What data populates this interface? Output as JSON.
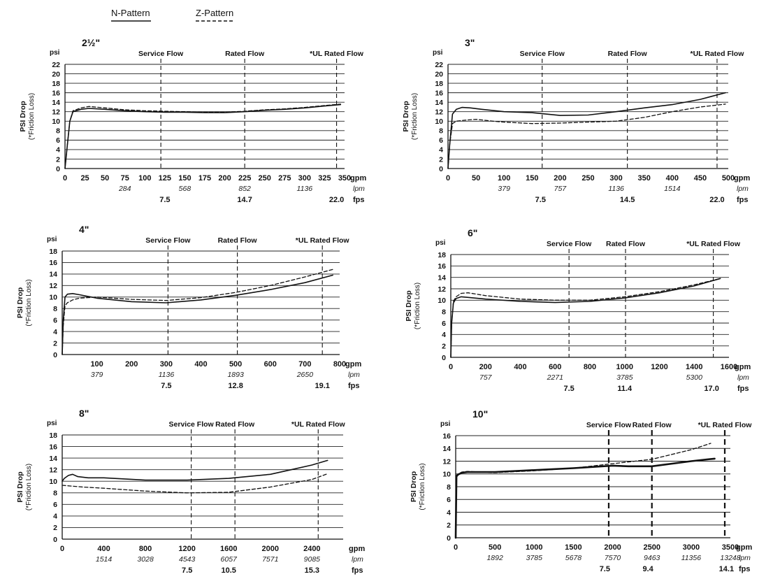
{
  "legend": {
    "n_pattern": "N-Pattern",
    "z_pattern": "Z-Pattern"
  },
  "labels": {
    "psi": "psi",
    "ylabel_main": "PSI Drop",
    "ylabel_sub": "(*Friction Loss)",
    "gpm": "gpm",
    "lpm": "lpm",
    "fps": "fps",
    "service_flow": "Service Flow",
    "rated_flow": "Rated Flow",
    "ul_rated_flow": "*UL Rated Flow"
  },
  "colors": {
    "line": "#111111",
    "grid": "#222222"
  },
  "chart_data": [
    {
      "id": "2_5in",
      "type": "line",
      "title": "2½\"",
      "xlabel": "gpm",
      "ylabel": "PSI Drop (*Friction Loss)",
      "xlim": [
        0,
        350
      ],
      "ylim": [
        0,
        22
      ],
      "x_ticks": [
        "0",
        "25",
        "50",
        "75",
        "100",
        "125",
        "150",
        "175",
        "200",
        "225",
        "250",
        "275",
        "300",
        "325",
        "350"
      ],
      "y_ticks": [
        "0",
        "2",
        "4",
        "6",
        "8",
        "10",
        "12",
        "14",
        "16",
        "18",
        "20",
        "22"
      ],
      "lpm_ticks": [
        {
          "x": 75,
          "label": "284"
        },
        {
          "x": 150,
          "label": "568"
        },
        {
          "x": 225,
          "label": "852"
        },
        {
          "x": 300,
          "label": "1136"
        }
      ],
      "fps_ticks": [
        {
          "x": 125,
          "label": "7.5"
        },
        {
          "x": 225,
          "label": "14.7"
        },
        {
          "x": 340,
          "label": "22.0"
        }
      ],
      "markers": [
        {
          "x": 120,
          "label": "Service Flow"
        },
        {
          "x": 225,
          "label": "Rated Flow"
        },
        {
          "x": 340,
          "label": "*UL Rated Flow"
        }
      ],
      "series": [
        {
          "name": "N-Pattern",
          "style": "solid",
          "x": [
            0,
            3,
            6,
            10,
            20,
            30,
            50,
            75,
            100,
            125,
            150,
            175,
            200,
            225,
            250,
            275,
            300,
            325,
            345
          ],
          "y": [
            0,
            5,
            10,
            12,
            12.5,
            12.7,
            12.5,
            12.2,
            12.0,
            11.9,
            11.9,
            11.8,
            11.8,
            12.0,
            12.3,
            12.5,
            12.8,
            13.2,
            13.5
          ]
        },
        {
          "name": "Z-Pattern",
          "style": "dashed",
          "x": [
            0,
            3,
            6,
            10,
            20,
            30,
            50,
            75,
            100,
            125,
            150,
            175,
            200,
            225,
            250,
            275,
            300,
            325,
            345
          ],
          "y": [
            0,
            5,
            10,
            12.2,
            12.8,
            13.1,
            12.8,
            12.4,
            12.2,
            12.1,
            12.0,
            11.9,
            11.9,
            12.1,
            12.4,
            12.6,
            12.9,
            13.3,
            13.6
          ]
        }
      ]
    },
    {
      "id": "3in",
      "type": "line",
      "title": "3\"",
      "xlabel": "gpm",
      "ylabel": "PSI Drop (*Friction Loss)",
      "xlim": [
        0,
        500
      ],
      "ylim": [
        0,
        22
      ],
      "x_ticks": [
        "0",
        "50",
        "100",
        "150",
        "200",
        "250",
        "300",
        "350",
        "400",
        "450",
        "500"
      ],
      "y_ticks": [
        "0",
        "2",
        "4",
        "6",
        "8",
        "10",
        "12",
        "14",
        "16",
        "18",
        "20",
        "22"
      ],
      "lpm_ticks": [
        {
          "x": 100,
          "label": "379"
        },
        {
          "x": 200,
          "label": "757"
        },
        {
          "x": 300,
          "label": "1136"
        },
        {
          "x": 400,
          "label": "1514"
        }
      ],
      "fps_ticks": [
        {
          "x": 165,
          "label": "7.5"
        },
        {
          "x": 320,
          "label": "14.5"
        },
        {
          "x": 480,
          "label": "22.0"
        }
      ],
      "markers": [
        {
          "x": 168,
          "label": "Service Flow"
        },
        {
          "x": 320,
          "label": "Rated Flow"
        },
        {
          "x": 480,
          "label": "*UL Rated Flow"
        }
      ],
      "series": [
        {
          "name": "N-Pattern",
          "style": "solid",
          "x": [
            0,
            3,
            8,
            15,
            25,
            40,
            60,
            100,
            150,
            200,
            250,
            300,
            350,
            400,
            450,
            495
          ],
          "y": [
            0,
            5,
            11.5,
            12.5,
            12.9,
            12.8,
            12.5,
            12.0,
            11.8,
            11.2,
            11.3,
            12.0,
            12.8,
            13.5,
            14.6,
            16.0
          ]
        },
        {
          "name": "Z-Pattern",
          "style": "dashed",
          "x": [
            0,
            3,
            8,
            15,
            30,
            50,
            80,
            100,
            150,
            200,
            250,
            300,
            350,
            400,
            450,
            495
          ],
          "y": [
            0,
            5,
            9.5,
            10.0,
            10.2,
            10.4,
            10.0,
            9.8,
            9.5,
            9.6,
            9.8,
            10.0,
            10.8,
            12.0,
            13.0,
            13.6
          ]
        }
      ]
    },
    {
      "id": "4in",
      "type": "line",
      "title": "4\"",
      "xlabel": "gpm",
      "ylabel": "PSI Drop (*Friction Loss)",
      "xlim": [
        0,
        800
      ],
      "ylim": [
        0,
        18
      ],
      "x_ticks": [
        "100",
        "200",
        "300",
        "400",
        "500",
        "600",
        "700",
        "800"
      ],
      "y_ticks": [
        "0",
        "2",
        "4",
        "6",
        "8",
        "10",
        "12",
        "14",
        "16",
        "18"
      ],
      "lpm_ticks": [
        {
          "x": 100,
          "label": "379"
        },
        {
          "x": 300,
          "label": "1136"
        },
        {
          "x": 500,
          "label": "1893"
        },
        {
          "x": 700,
          "label": "2650"
        }
      ],
      "fps_ticks": [
        {
          "x": 300,
          "label": "7.5"
        },
        {
          "x": 500,
          "label": "12.8"
        },
        {
          "x": 750,
          "label": "19.1"
        }
      ],
      "markers": [
        {
          "x": 305,
          "label": "Service Flow"
        },
        {
          "x": 505,
          "label": "Rated Flow"
        },
        {
          "x": 750,
          "label": "*UL Rated Flow"
        }
      ],
      "series": [
        {
          "name": "N-Pattern",
          "style": "solid",
          "x": [
            0,
            3,
            8,
            15,
            30,
            50,
            100,
            200,
            300,
            400,
            500,
            600,
            700,
            780
          ],
          "y": [
            0,
            6,
            10.0,
            10.5,
            10.6,
            10.4,
            9.8,
            9.2,
            9.0,
            9.5,
            10.3,
            11.3,
            12.5,
            13.8
          ]
        },
        {
          "name": "Z-Pattern",
          "style": "dashed",
          "x": [
            0,
            3,
            8,
            15,
            30,
            50,
            100,
            200,
            300,
            400,
            500,
            600,
            700,
            780
          ],
          "y": [
            0,
            5,
            8.5,
            9.0,
            9.5,
            9.8,
            10.0,
            9.6,
            9.4,
            9.9,
            10.8,
            12.0,
            13.5,
            14.8
          ]
        }
      ]
    },
    {
      "id": "6in",
      "type": "line",
      "title": "6\"",
      "xlabel": "gpm",
      "ylabel": "PSI Drop (*Friction Loss)",
      "xlim": [
        0,
        1600
      ],
      "ylim": [
        0,
        18
      ],
      "x_ticks": [
        "0",
        "200",
        "400",
        "600",
        "800",
        "1000",
        "1200",
        "1400",
        "1600"
      ],
      "y_ticks": [
        "0",
        "2",
        "4",
        "6",
        "8",
        "10",
        "12",
        "14",
        "16",
        "18"
      ],
      "lpm_ticks": [
        {
          "x": 200,
          "label": "757"
        },
        {
          "x": 600,
          "label": "2271"
        },
        {
          "x": 1000,
          "label": "3785"
        },
        {
          "x": 1400,
          "label": "5300"
        }
      ],
      "fps_ticks": [
        {
          "x": 680,
          "label": "7.5"
        },
        {
          "x": 1000,
          "label": "11.4"
        },
        {
          "x": 1500,
          "label": "17.0"
        }
      ],
      "markers": [
        {
          "x": 680,
          "label": "Service Flow"
        },
        {
          "x": 1005,
          "label": "Rated Flow"
        },
        {
          "x": 1510,
          "label": "*UL Rated Flow"
        }
      ],
      "series": [
        {
          "name": "N-Pattern",
          "style": "solid",
          "x": [
            0,
            5,
            15,
            30,
            60,
            100,
            200,
            400,
            600,
            800,
            1000,
            1200,
            1400,
            1550
          ],
          "y": [
            0,
            6,
            9.5,
            10.3,
            10.6,
            10.5,
            10.2,
            9.8,
            9.6,
            9.8,
            10.4,
            11.3,
            12.5,
            13.8
          ]
        },
        {
          "name": "Z-Pattern",
          "style": "dashed",
          "x": [
            0,
            5,
            15,
            30,
            60,
            100,
            200,
            400,
            600,
            800,
            1000,
            1200,
            1400,
            1550
          ],
          "y": [
            0,
            6,
            9.8,
            10.6,
            11.2,
            11.3,
            10.8,
            10.2,
            10.0,
            10.0,
            10.6,
            11.5,
            12.7,
            13.8
          ]
        }
      ]
    },
    {
      "id": "8in",
      "type": "line",
      "title": "8\"",
      "xlabel": "gpm",
      "ylabel": "PSI Drop (*Friction Loss)",
      "xlim": [
        0,
        2700
      ],
      "ylim": [
        0,
        18
      ],
      "x_ticks": [
        "0",
        "400",
        "800",
        "1200",
        "1600",
        "2000",
        "2400"
      ],
      "y_ticks": [
        "0",
        "2",
        "4",
        "6",
        "8",
        "10",
        "12",
        "14",
        "16",
        "18"
      ],
      "lpm_ticks": [
        {
          "x": 400,
          "label": "1514"
        },
        {
          "x": 800,
          "label": "3028"
        },
        {
          "x": 1200,
          "label": "4543"
        },
        {
          "x": 1600,
          "label": "6057"
        },
        {
          "x": 2000,
          "label": "7571"
        },
        {
          "x": 2400,
          "label": "9085"
        }
      ],
      "fps_ticks": [
        {
          "x": 1200,
          "label": "7.5"
        },
        {
          "x": 1600,
          "label": "10.5"
        },
        {
          "x": 2400,
          "label": "15.3"
        }
      ],
      "markers": [
        {
          "x": 1240,
          "label": "Service Flow"
        },
        {
          "x": 1660,
          "label": "Rated Flow"
        },
        {
          "x": 2460,
          "label": "*UL Rated Flow"
        }
      ],
      "series": [
        {
          "name": "N-Pattern",
          "style": "solid",
          "x": [
            0,
            20,
            60,
            100,
            150,
            250,
            400,
            800,
            1200,
            1600,
            2000,
            2200,
            2400,
            2550
          ],
          "y": [
            10.0,
            10.5,
            11.0,
            11.2,
            10.8,
            10.6,
            10.6,
            10.2,
            10.2,
            10.5,
            11.2,
            12.0,
            12.8,
            13.6
          ]
        },
        {
          "name": "Z-Pattern",
          "style": "dashed",
          "x": [
            0,
            200,
            400,
            800,
            1200,
            1600,
            2000,
            2400,
            2550
          ],
          "y": [
            9.3,
            9.0,
            8.8,
            8.3,
            8.0,
            8.1,
            9.0,
            10.3,
            11.3
          ]
        }
      ]
    },
    {
      "id": "10in",
      "type": "line",
      "title": "10\"",
      "xlabel": "gpm",
      "ylabel": "PSI Drop (*Friction Loss)",
      "xlim": [
        0,
        3500
      ],
      "ylim": [
        0,
        16
      ],
      "x_ticks": [
        "0",
        "500",
        "1000",
        "1500",
        "2000",
        "2500",
        "3000",
        "3500"
      ],
      "y_ticks": [
        "0",
        "2",
        "4",
        "6",
        "8",
        "10",
        "12",
        "14",
        "16"
      ],
      "lpm_ticks": [
        {
          "x": 500,
          "label": "1892"
        },
        {
          "x": 1000,
          "label": "3785"
        },
        {
          "x": 1500,
          "label": "5678"
        },
        {
          "x": 2000,
          "label": "7570"
        },
        {
          "x": 2500,
          "label": "9463"
        },
        {
          "x": 3000,
          "label": "11356"
        },
        {
          "x": 3500,
          "label": "13248"
        }
      ],
      "fps_ticks": [
        {
          "x": 1900,
          "label": "7.5"
        },
        {
          "x": 2450,
          "label": "9.4"
        },
        {
          "x": 3450,
          "label": "14.1"
        }
      ],
      "markers": [
        {
          "x": 1950,
          "label": "Service Flow"
        },
        {
          "x": 2500,
          "label": "Rated Flow"
        },
        {
          "x": 3500,
          "label": "*UL Rated Flow"
        }
      ],
      "series": [
        {
          "name": "N-Pattern",
          "style": "solid",
          "x": [
            0,
            10,
            30,
            80,
            150,
            300,
            500,
            1000,
            1500,
            2000,
            2200,
            2500,
            3000,
            3300
          ],
          "y": [
            0,
            9.6,
            9.9,
            10.2,
            10.3,
            10.3,
            10.3,
            10.6,
            10.9,
            11.3,
            11.2,
            11.2,
            12.0,
            12.4
          ]
        },
        {
          "name": "Z-Pattern",
          "style": "dashed",
          "x": [
            0,
            10,
            30,
            80,
            150,
            300,
            500,
            1000,
            1500,
            2000,
            2500,
            3000,
            3250
          ],
          "y": [
            0,
            9.8,
            10.0,
            10.3,
            10.4,
            10.3,
            10.2,
            10.5,
            10.9,
            11.6,
            12.3,
            13.8,
            14.8
          ]
        }
      ]
    }
  ]
}
